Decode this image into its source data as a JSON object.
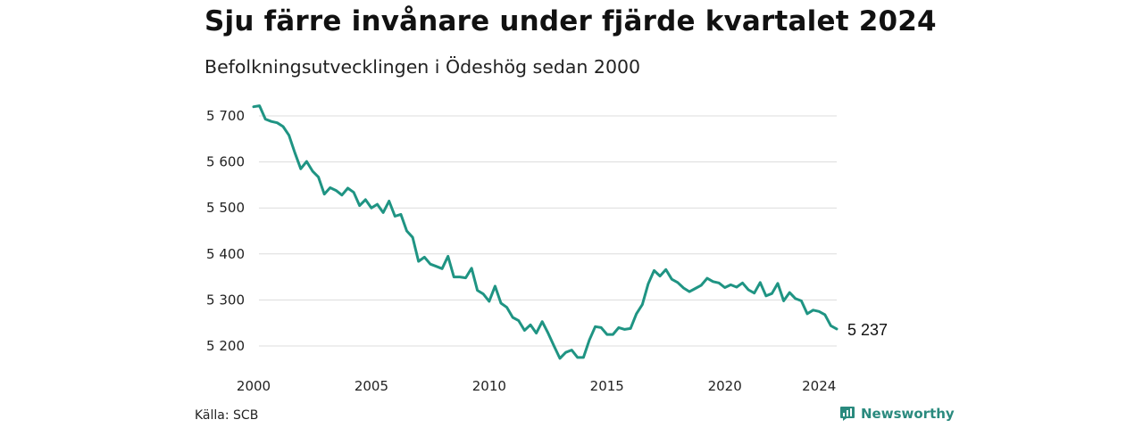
{
  "header": {
    "title": "Sju färre invånare under fjärde kvartalet 2024",
    "subtitle": "Befolkningsutvecklingen i Ödeshög sedan 2000"
  },
  "footer": {
    "source": "Källa: SCB",
    "brand": "Newsworthy",
    "brand_icon": "bar-chart-icon"
  },
  "chart_data": {
    "type": "line",
    "title": "Sju färre invånare under fjärde kvartalet 2024",
    "subtitle": "Befolkningsutvecklingen i Ödeshög sedan 2000",
    "xlabel": "",
    "ylabel": "",
    "xlim": [
      2000,
      2024.75
    ],
    "ylim": [
      5160,
      5730
    ],
    "x_ticks": [
      2000,
      2005,
      2010,
      2015,
      2020,
      2024
    ],
    "x_tick_labels": [
      "2000",
      "2005",
      "2010",
      "2015",
      "2020",
      "2024"
    ],
    "y_ticks": [
      5200,
      5300,
      5400,
      5500,
      5600,
      5700
    ],
    "y_tick_labels": [
      "5 200",
      "5 300",
      "5 400",
      "5 500",
      "5 600",
      "5 700"
    ],
    "grid": "horizontal",
    "line_color": "#1f9483",
    "end_label": "5 237",
    "series": [
      {
        "x": [
          2000.0,
          2000.25,
          2000.5,
          2000.75,
          2001.0,
          2001.25,
          2001.5,
          2001.75,
          2002.0,
          2002.25,
          2002.5,
          2002.75,
          2003.0,
          2003.25,
          2003.5,
          2003.75,
          2004.0,
          2004.25,
          2004.5,
          2004.75,
          2005.0,
          2005.25,
          2005.5,
          2005.75,
          2006.0,
          2006.25,
          2006.5,
          2006.75,
          2007.0,
          2007.25,
          2007.5,
          2007.75,
          2008.0,
          2008.25,
          2008.5,
          2008.75,
          2009.0,
          2009.25,
          2009.5,
          2009.75,
          2010.0,
          2010.25,
          2010.5,
          2010.75,
          2011.0,
          2011.25,
          2011.5,
          2011.75,
          2012.0,
          2012.25,
          2012.5,
          2012.75,
          2013.0,
          2013.25,
          2013.5,
          2013.75,
          2014.0,
          2014.25,
          2014.5,
          2014.75,
          2015.0,
          2015.25,
          2015.5,
          2015.75,
          2016.0,
          2016.25,
          2016.5,
          2016.75,
          2017.0,
          2017.25,
          2017.5,
          2017.75,
          2018.0,
          2018.25,
          2018.5,
          2018.75,
          2019.0,
          2019.25,
          2019.5,
          2019.75,
          2020.0,
          2020.25,
          2020.5,
          2020.75,
          2021.0,
          2021.25,
          2021.5,
          2021.75,
          2022.0,
          2022.25,
          2022.5,
          2022.75,
          2023.0,
          2023.25,
          2023.5,
          2023.75,
          2024.0,
          2024.25,
          2024.5,
          2024.75
        ],
        "values": [
          5720,
          5722,
          5693,
          5688,
          5685,
          5677,
          5658,
          5620,
          5585,
          5601,
          5580,
          5567,
          5530,
          5544,
          5538,
          5528,
          5543,
          5534,
          5505,
          5518,
          5500,
          5508,
          5490,
          5515,
          5482,
          5486,
          5450,
          5436,
          5384,
          5393,
          5378,
          5373,
          5368,
          5395,
          5350,
          5350,
          5348,
          5369,
          5321,
          5313,
          5297,
          5330,
          5293,
          5284,
          5262,
          5255,
          5234,
          5246,
          5228,
          5253,
          5228,
          5200,
          5173,
          5186,
          5191,
          5175,
          5175,
          5213,
          5242,
          5240,
          5225,
          5225,
          5240,
          5236,
          5238,
          5270,
          5290,
          5335,
          5364,
          5352,
          5366,
          5345,
          5338,
          5326,
          5318,
          5325,
          5332,
          5347,
          5340,
          5337,
          5327,
          5333,
          5328,
          5337,
          5322,
          5315,
          5338,
          5309,
          5314,
          5336,
          5298,
          5316,
          5303,
          5298,
          5270,
          5278,
          5275,
          5268,
          5244,
          5237
        ]
      }
    ]
  }
}
